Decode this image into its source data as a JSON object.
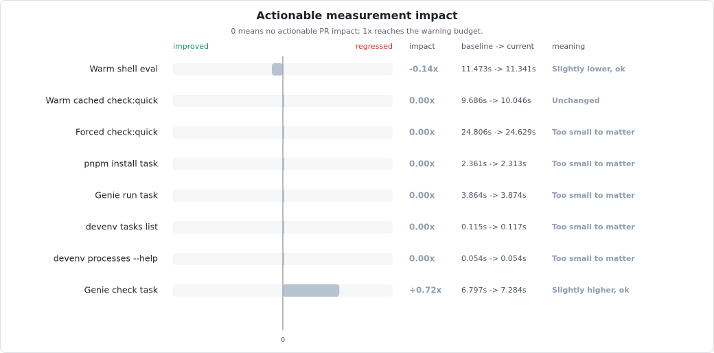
{
  "title": "Actionable measurement impact",
  "subtitle": "0 means no actionable PR impact; 1x reaches the warning budget.",
  "colors": {
    "improved": "#12915a",
    "regressed": "#d63131",
    "bar": "#b8c3d0",
    "track": "#f4f6f8",
    "muted": "#8e9db0",
    "axis": "#9aa3ad"
  },
  "chart_data": {
    "type": "bar",
    "orientation": "horizontal",
    "xlim": [
      -1.4,
      1.4
    ],
    "x_tick_labels": [
      "0"
    ],
    "headers": {
      "improved": "improved",
      "regressed": "regressed",
      "impact": "impact",
      "baseline": "baseline -> current",
      "meaning": "meaning"
    },
    "rows": [
      {
        "label": "Warm shell eval",
        "value": -0.14,
        "impact": "-0.14x",
        "baseline": "11.473s -> 11.341s",
        "meaning": "Slightly lower, ok"
      },
      {
        "label": "Warm cached check:quick",
        "value": 0.0,
        "impact": "0.00x",
        "baseline": "9.686s -> 10.046s",
        "meaning": "Unchanged"
      },
      {
        "label": "Forced check:quick",
        "value": 0.0,
        "impact": "0.00x",
        "baseline": "24.806s -> 24.629s",
        "meaning": "Too small to matter"
      },
      {
        "label": "pnpm install task",
        "value": 0.0,
        "impact": "0.00x",
        "baseline": "2.361s -> 2.313s",
        "meaning": "Too small to matter"
      },
      {
        "label": "Genie run task",
        "value": 0.0,
        "impact": "0.00x",
        "baseline": "3.864s -> 3.874s",
        "meaning": "Too small to matter"
      },
      {
        "label": "devenv tasks list",
        "value": 0.0,
        "impact": "0.00x",
        "baseline": "0.115s -> 0.117s",
        "meaning": "Too small to matter"
      },
      {
        "label": "devenv processes --help",
        "value": 0.0,
        "impact": "0.00x",
        "baseline": "0.054s -> 0.054s",
        "meaning": "Too small to matter"
      },
      {
        "label": "Genie check task",
        "value": 0.72,
        "impact": "+0.72x",
        "baseline": "6.797s -> 7.284s",
        "meaning": "Slightly higher, ok"
      }
    ]
  }
}
